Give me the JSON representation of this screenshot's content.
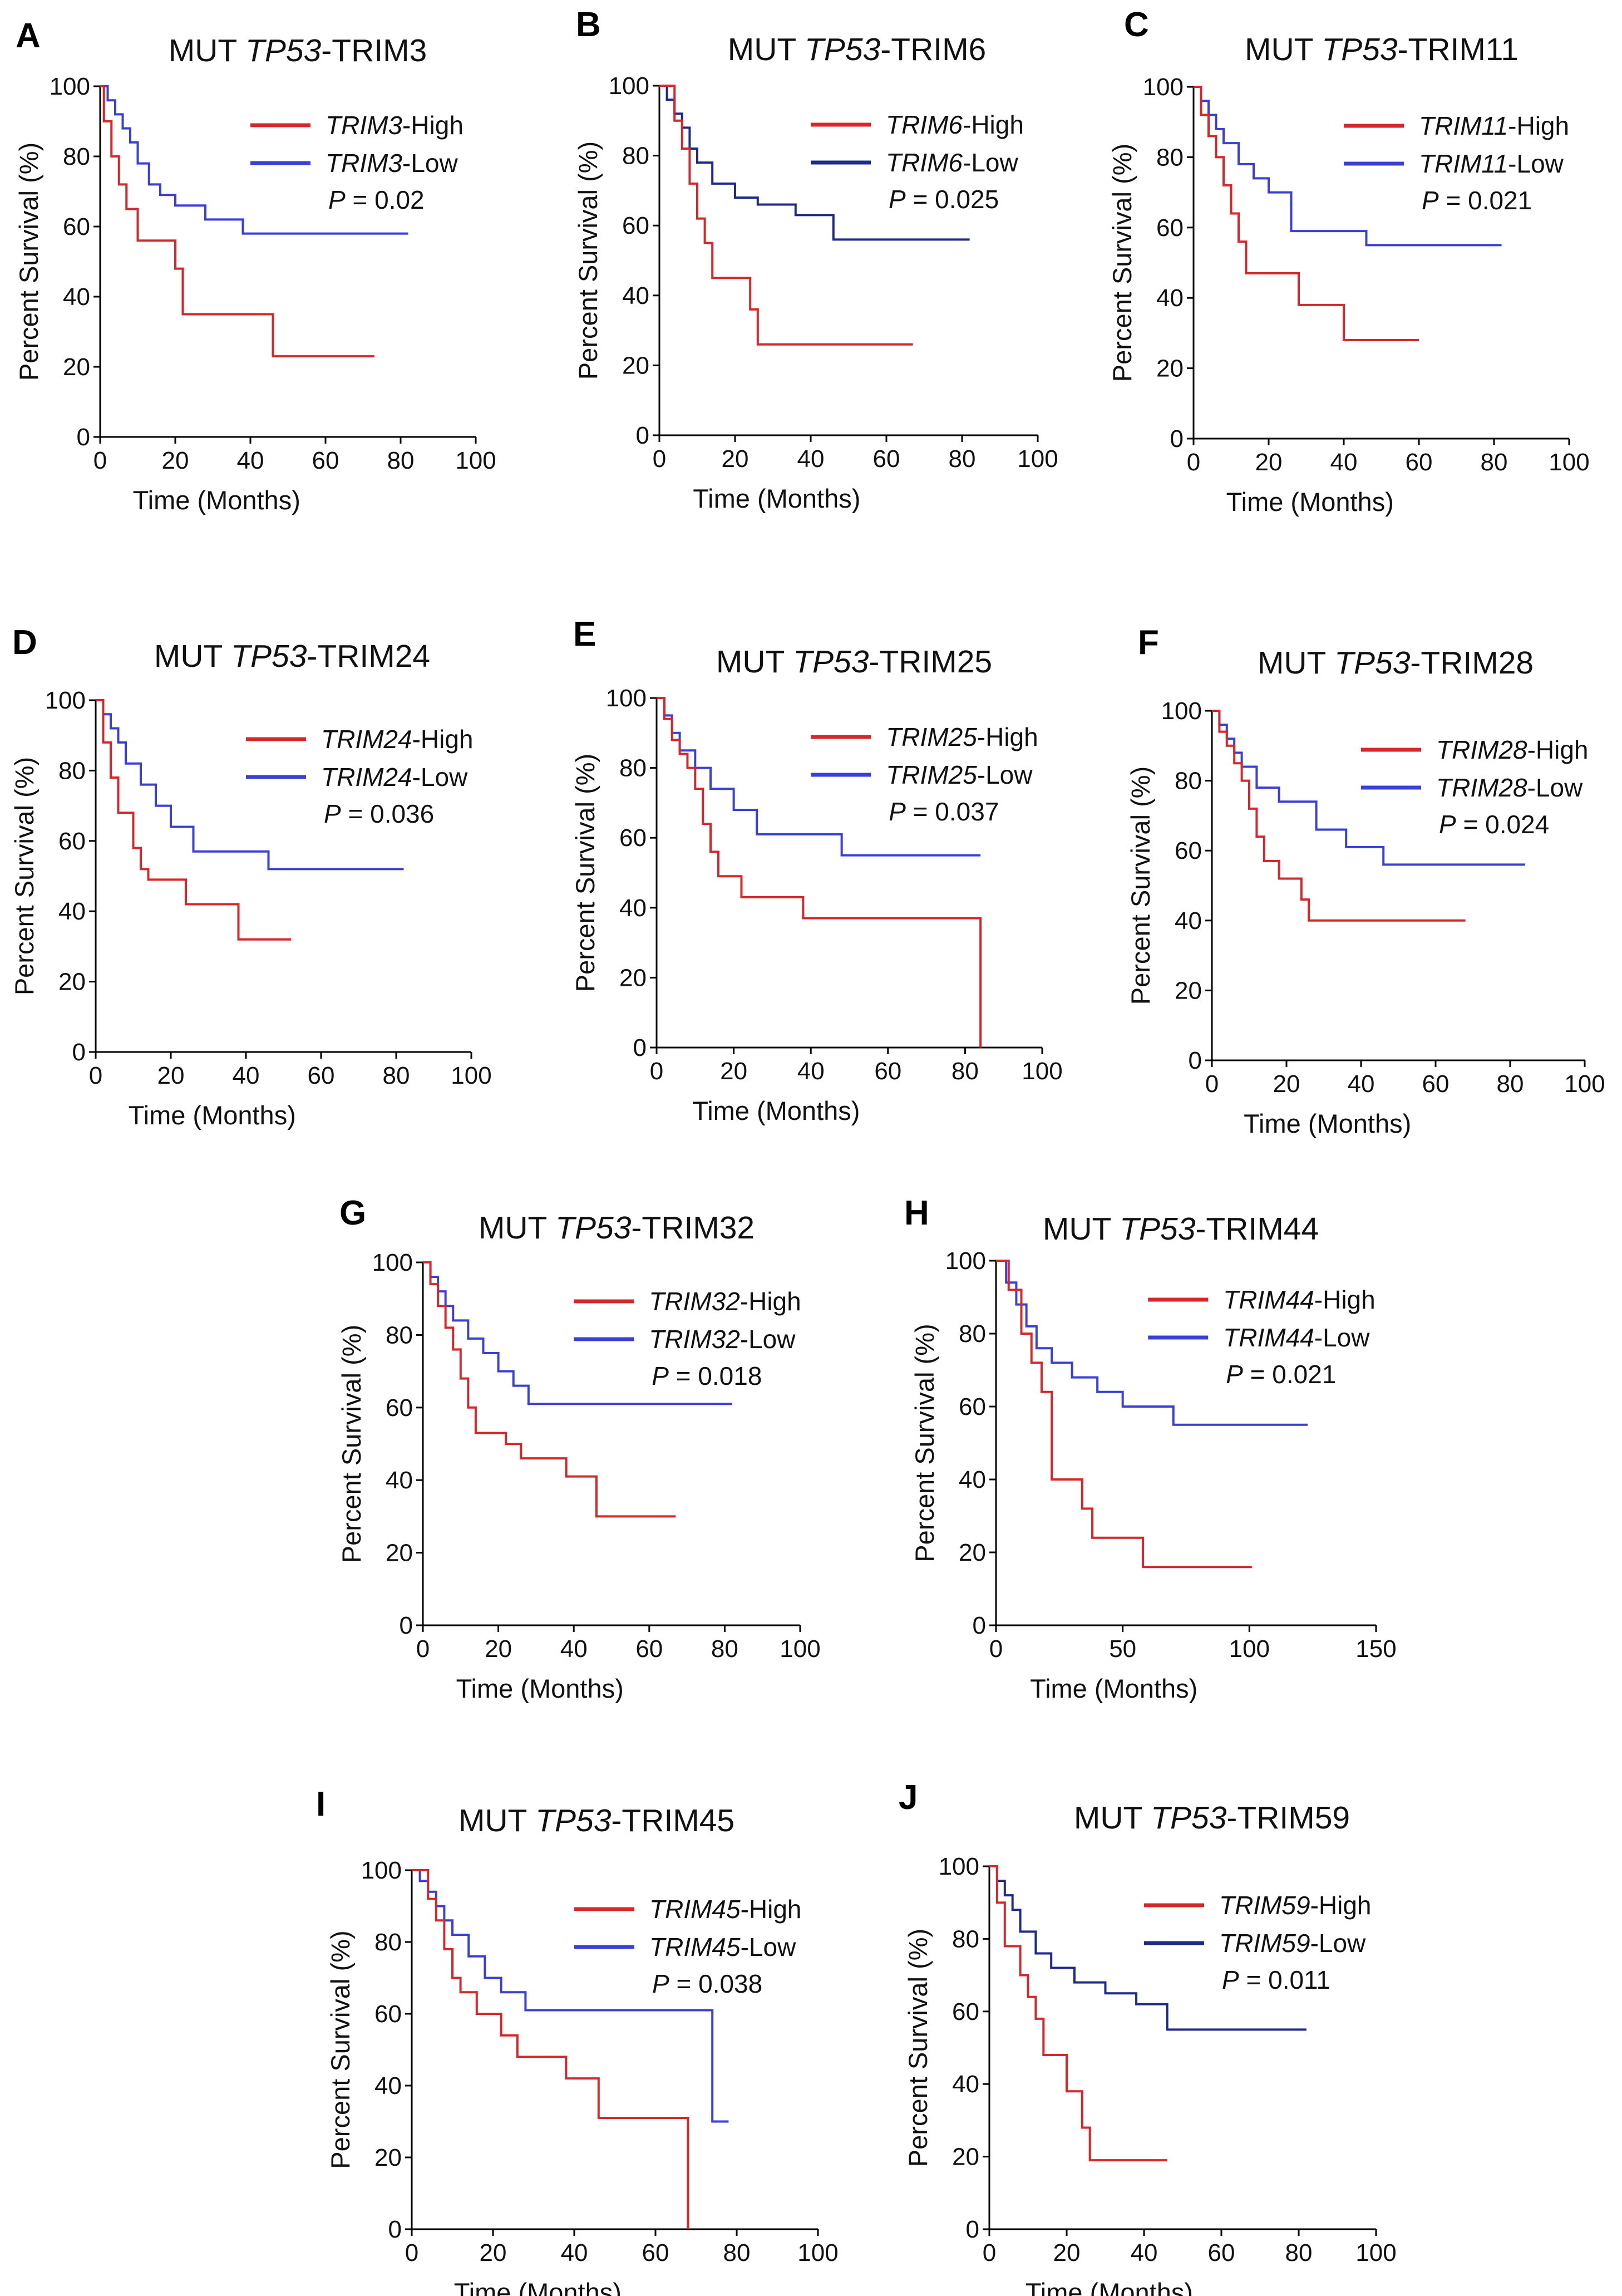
{
  "chart_data": [
    {
      "type": "line",
      "letter": "A",
      "title": "MUT TP53-TRIM3",
      "title_prefix": "MUT ",
      "title_gene": "TP53",
      "title_suffix": "-TRIM3",
      "xlabel": "Time (Months)",
      "ylabel": "Percent Survival (%)",
      "xlim": [
        0,
        100
      ],
      "ylim": [
        0,
        100
      ],
      "xticks": [
        0,
        20,
        40,
        60,
        80,
        100
      ],
      "yticks": [
        0,
        20,
        40,
        60,
        80,
        100
      ],
      "pvalue": "0.02",
      "series": [
        {
          "name": "TRIM3-High",
          "gene": "TRIM3",
          "suffix": "-High",
          "color": "#d6272b",
          "x": [
            0,
            1,
            3,
            5,
            7,
            10,
            13,
            20,
            22,
            25,
            46,
            73
          ],
          "y": [
            100,
            90,
            80,
            72,
            65,
            56,
            56,
            48,
            35,
            35,
            23,
            23
          ]
        },
        {
          "name": "TRIM3-Low",
          "gene": "TRIM3",
          "suffix": "-Low",
          "color": "#3a3fd8",
          "x": [
            0,
            2,
            4,
            6,
            8,
            10,
            13,
            16,
            20,
            28,
            38,
            82
          ],
          "y": [
            100,
            96,
            92,
            88,
            84,
            78,
            72,
            69,
            66,
            62,
            58,
            58
          ]
        }
      ]
    },
    {
      "type": "line",
      "letter": "B",
      "title": "MUT TP53-TRIM6",
      "title_prefix": "MUT ",
      "title_gene": "TP53",
      "title_suffix": "-TRIM6",
      "xlabel": "Time (Months)",
      "ylabel": "Percent Survival (%)",
      "xlim": [
        0,
        100
      ],
      "ylim": [
        0,
        100
      ],
      "xticks": [
        0,
        20,
        40,
        60,
        80,
        100
      ],
      "yticks": [
        0,
        20,
        40,
        60,
        80,
        100
      ],
      "pvalue": "0.025",
      "series": [
        {
          "name": "TRIM6-High",
          "gene": "TRIM6",
          "suffix": "-High",
          "color": "#d6272b",
          "x": [
            0,
            4,
            6,
            8,
            10,
            12,
            14,
            24,
            26,
            67
          ],
          "y": [
            100,
            90,
            82,
            72,
            62,
            55,
            45,
            36,
            26,
            26
          ]
        },
        {
          "name": "TRIM6-Low",
          "gene": "TRIM6",
          "suffix": "-Low",
          "color": "#1d2a8a",
          "x": [
            0,
            2,
            4,
            6,
            8,
            10,
            14,
            20,
            26,
            36,
            46,
            82
          ],
          "y": [
            100,
            96,
            92,
            88,
            82,
            78,
            72,
            68,
            66,
            63,
            56,
            56
          ]
        }
      ]
    },
    {
      "type": "line",
      "letter": "C",
      "title": "MUT TP53-TRIM11",
      "title_prefix": "MUT ",
      "title_gene": "TP53",
      "title_suffix": "-TRIM11",
      "xlabel": "Time (Months)",
      "ylabel": "Percent Survival (%)",
      "xlim": [
        0,
        100
      ],
      "ylim": [
        0,
        100
      ],
      "xticks": [
        0,
        20,
        40,
        60,
        80,
        100
      ],
      "yticks": [
        0,
        20,
        40,
        60,
        80,
        100
      ],
      "pvalue": "0.021",
      "series": [
        {
          "name": "TRIM11-High",
          "gene": "TRIM11",
          "suffix": "-High",
          "color": "#d6272b",
          "x": [
            0,
            2,
            4,
            6,
            8,
            10,
            12,
            14,
            28,
            40,
            60
          ],
          "y": [
            100,
            92,
            86,
            80,
            72,
            64,
            56,
            47,
            38,
            28,
            28
          ]
        },
        {
          "name": "TRIM11-Low",
          "gene": "TRIM11",
          "suffix": "-Low",
          "color": "#3a3fd8",
          "x": [
            0,
            2,
            4,
            6,
            8,
            12,
            16,
            20,
            26,
            46,
            82
          ],
          "y": [
            100,
            96,
            92,
            88,
            84,
            78,
            74,
            70,
            59,
            55,
            55
          ]
        }
      ]
    },
    {
      "type": "line",
      "letter": "D",
      "title": "MUT TP53-TRIM24",
      "title_prefix": "MUT ",
      "title_gene": "TP53",
      "title_suffix": "-TRIM24",
      "xlabel": "Time (Months)",
      "ylabel": "Percent Survival (%)",
      "xlim": [
        0,
        100
      ],
      "ylim": [
        0,
        100
      ],
      "xticks": [
        0,
        20,
        40,
        60,
        80,
        100
      ],
      "yticks": [
        0,
        20,
        40,
        60,
        80,
        100
      ],
      "pvalue": "0.036",
      "series": [
        {
          "name": "TRIM24-High",
          "gene": "TRIM24",
          "suffix": "-High",
          "color": "#d6272b",
          "x": [
            0,
            2,
            4,
            6,
            10,
            12,
            14,
            24,
            38,
            52
          ],
          "y": [
            100,
            88,
            78,
            68,
            58,
            52,
            49,
            42,
            32,
            32
          ]
        },
        {
          "name": "TRIM24-Low",
          "gene": "TRIM24",
          "suffix": "-Low",
          "color": "#3a3fd8",
          "x": [
            0,
            2,
            4,
            6,
            8,
            12,
            16,
            20,
            26,
            46,
            82
          ],
          "y": [
            100,
            96,
            92,
            88,
            82,
            76,
            70,
            64,
            57,
            52,
            52
          ]
        }
      ]
    },
    {
      "type": "line",
      "letter": "E",
      "title": "MUT TP53-TRIM25",
      "title_prefix": "MUT ",
      "title_gene": "TP53",
      "title_suffix": "-TRIM25",
      "xlabel": "Time (Months)",
      "ylabel": "Percent Survival (%)",
      "xlim": [
        0,
        100
      ],
      "ylim": [
        0,
        100
      ],
      "xticks": [
        0,
        20,
        40,
        60,
        80,
        100
      ],
      "yticks": [
        0,
        20,
        40,
        60,
        80,
        100
      ],
      "pvalue": "0.037",
      "series": [
        {
          "name": "TRIM25-High",
          "gene": "TRIM25",
          "suffix": "-High",
          "color": "#d6272b",
          "x": [
            0,
            2,
            4,
            6,
            8,
            10,
            12,
            14,
            16,
            22,
            38,
            83,
            84
          ],
          "y": [
            100,
            94,
            88,
            84,
            80,
            74,
            64,
            56,
            49,
            43,
            37,
            37,
            0
          ]
        },
        {
          "name": "TRIM25-Low",
          "gene": "TRIM25",
          "suffix": "-Low",
          "color": "#3a3fd8",
          "x": [
            0,
            2,
            4,
            6,
            10,
            14,
            20,
            26,
            48,
            84
          ],
          "y": [
            100,
            95,
            90,
            85,
            80,
            74,
            68,
            61,
            55,
            55
          ]
        }
      ]
    },
    {
      "type": "line",
      "letter": "F",
      "title": "MUT TP53-TRIM28",
      "title_prefix": "MUT ",
      "title_gene": "TP53",
      "title_suffix": "-TRIM28",
      "xlabel": "Time (Months)",
      "ylabel": "Percent Survival (%)",
      "xlim": [
        0,
        100
      ],
      "ylim": [
        0,
        100
      ],
      "xticks": [
        0,
        20,
        40,
        60,
        80,
        100
      ],
      "yticks": [
        0,
        20,
        40,
        60,
        80,
        100
      ],
      "pvalue": "0.024",
      "series": [
        {
          "name": "TRIM28-High",
          "gene": "TRIM28",
          "suffix": "-High",
          "color": "#d6272b",
          "x": [
            0,
            2,
            4,
            6,
            8,
            10,
            12,
            14,
            18,
            24,
            26,
            68
          ],
          "y": [
            100,
            94,
            90,
            85,
            80,
            72,
            64,
            57,
            52,
            46,
            40,
            40
          ]
        },
        {
          "name": "TRIM28-Low",
          "gene": "TRIM28",
          "suffix": "-Low",
          "color": "#3a3fd8",
          "x": [
            0,
            2,
            4,
            6,
            8,
            12,
            18,
            28,
            36,
            46,
            84
          ],
          "y": [
            100,
            96,
            92,
            88,
            84,
            78,
            74,
            66,
            61,
            56,
            56
          ]
        }
      ]
    },
    {
      "type": "line",
      "letter": "G",
      "title": "MUT TP53-TRIM32",
      "title_prefix": "MUT ",
      "title_gene": "TP53",
      "title_suffix": "-TRIM32",
      "xlabel": "Time (Months)",
      "ylabel": "Percent Survival (%)",
      "xlim": [
        0,
        100
      ],
      "ylim": [
        0,
        100
      ],
      "xticks": [
        0,
        20,
        40,
        60,
        80,
        100
      ],
      "yticks": [
        0,
        20,
        40,
        60,
        80,
        100
      ],
      "pvalue": "0.018",
      "series": [
        {
          "name": "TRIM32-High",
          "gene": "TRIM32",
          "suffix": "-High",
          "color": "#d6272b",
          "x": [
            0,
            2,
            4,
            6,
            8,
            10,
            12,
            14,
            22,
            26,
            38,
            46,
            67
          ],
          "y": [
            100,
            94,
            88,
            82,
            76,
            68,
            60,
            53,
            50,
            46,
            41,
            30,
            30
          ]
        },
        {
          "name": "TRIM32-Low",
          "gene": "TRIM32",
          "suffix": "-Low",
          "color": "#3a3fd8",
          "x": [
            0,
            2,
            4,
            6,
            8,
            12,
            16,
            20,
            24,
            28,
            82
          ],
          "y": [
            100,
            96,
            92,
            88,
            84,
            79,
            75,
            70,
            66,
            61,
            61
          ]
        }
      ]
    },
    {
      "type": "line",
      "letter": "H",
      "title": "MUT TP53-TRIM44",
      "title_prefix": "MUT ",
      "title_gene": "TP53",
      "title_suffix": "-TRIM44",
      "xlabel": "Time (Months)",
      "ylabel": "Percent Survival (%)",
      "xlim": [
        0,
        150
      ],
      "ylim": [
        0,
        100
      ],
      "xticks": [
        0,
        50,
        100,
        150
      ],
      "yticks": [
        0,
        20,
        40,
        60,
        80,
        100
      ],
      "pvalue": "0.021",
      "series": [
        {
          "name": "TRIM44-High",
          "gene": "TRIM44",
          "suffix": "-High",
          "color": "#d6272b",
          "x": [
            0,
            5,
            10,
            14,
            18,
            22,
            34,
            38,
            58,
            101
          ],
          "y": [
            100,
            92,
            80,
            72,
            64,
            40,
            32,
            24,
            16,
            16
          ]
        },
        {
          "name": "TRIM44-Low",
          "gene": "TRIM44",
          "suffix": "-Low",
          "color": "#3a3fd8",
          "x": [
            0,
            4,
            8,
            12,
            16,
            22,
            30,
            40,
            50,
            70,
            123
          ],
          "y": [
            100,
            94,
            88,
            82,
            76,
            72,
            68,
            64,
            60,
            55,
            55
          ]
        }
      ]
    },
    {
      "type": "line",
      "letter": "I",
      "title": "MUT TP53-TRIM45",
      "title_prefix": "MUT ",
      "title_gene": "TP53",
      "title_suffix": "-TRIM45",
      "xlabel": "Time (Months)",
      "ylabel": "Percent Survival (%)",
      "xlim": [
        0,
        100
      ],
      "ylim": [
        0,
        100
      ],
      "xticks": [
        0,
        20,
        40,
        60,
        80,
        100
      ],
      "yticks": [
        0,
        20,
        40,
        60,
        80,
        100
      ],
      "pvalue": "0.038",
      "series": [
        {
          "name": "TRIM45-High",
          "gene": "TRIM45",
          "suffix": "-High",
          "color": "#d6272b",
          "x": [
            0,
            4,
            6,
            8,
            10,
            12,
            16,
            22,
            26,
            38,
            46,
            67,
            68
          ],
          "y": [
            100,
            92,
            86,
            78,
            70,
            66,
            60,
            54,
            48,
            42,
            31,
            31,
            0
          ]
        },
        {
          "name": "TRIM45-Low",
          "gene": "TRIM45",
          "suffix": "-Low",
          "color": "#3a3fd8",
          "x": [
            0,
            2,
            4,
            6,
            8,
            10,
            14,
            18,
            22,
            28,
            74,
            78
          ],
          "y": [
            100,
            97,
            94,
            90,
            86,
            82,
            76,
            70,
            66,
            61,
            30,
            30
          ]
        }
      ]
    },
    {
      "type": "line",
      "letter": "J",
      "title": "MUT TP53-TRIM59",
      "title_prefix": "MUT ",
      "title_gene": "TP53",
      "title_suffix": "-TRIM59",
      "xlabel": "Time (Months)",
      "ylabel": "Percent Survival (%)",
      "xlim": [
        0,
        100
      ],
      "ylim": [
        0,
        100
      ],
      "xticks": [
        0,
        20,
        40,
        60,
        80,
        100
      ],
      "yticks": [
        0,
        20,
        40,
        60,
        80,
        100
      ],
      "pvalue": "0.011",
      "series": [
        {
          "name": "TRIM59-High",
          "gene": "TRIM59",
          "suffix": "-High",
          "color": "#d6272b",
          "x": [
            0,
            2,
            4,
            8,
            10,
            12,
            14,
            20,
            24,
            26,
            46
          ],
          "y": [
            100,
            90,
            78,
            70,
            64,
            58,
            48,
            38,
            28,
            19,
            19
          ]
        },
        {
          "name": "TRIM59-Low",
          "gene": "TRIM59",
          "suffix": "-Low",
          "color": "#1d2a8a",
          "x": [
            0,
            2,
            4,
            6,
            8,
            12,
            16,
            22,
            30,
            38,
            46,
            82
          ],
          "y": [
            100,
            96,
            92,
            88,
            82,
            76,
            72,
            68,
            65,
            62,
            55,
            55
          ]
        }
      ]
    }
  ]
}
